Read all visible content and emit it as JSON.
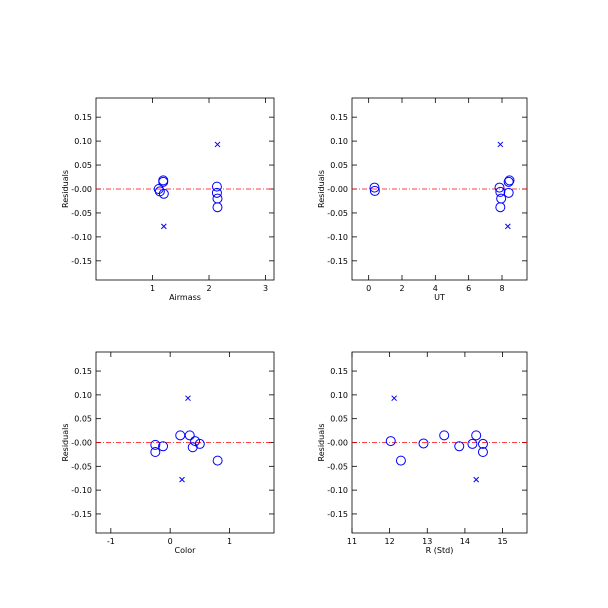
{
  "colors": {
    "points": "#0000ff",
    "zero_line": "#ff0000"
  },
  "chart_data": [
    {
      "type": "scatter",
      "xlabel": "Airmass",
      "ylabel": "Residuals",
      "xlim": [
        0,
        3.15
      ],
      "ylim": [
        -0.19,
        0.19
      ],
      "xticks": [
        1,
        2,
        3
      ],
      "yticks": [
        -0.15,
        -0.1,
        -0.05,
        0.0,
        0.05,
        0.1,
        0.15
      ],
      "ytick_labels": [
        "-0.15",
        "-0.10",
        "-0.05",
        "-0.00",
        "0.05",
        "0.10",
        "0.15"
      ],
      "reference_line": 0,
      "series": [
        {
          "marker": "circle",
          "points": [
            [
              1.11,
              0.0
            ],
            [
              1.13,
              -0.005
            ],
            [
              1.19,
              0.015
            ],
            [
              1.19,
              0.018
            ],
            [
              1.2,
              -0.01
            ],
            [
              2.14,
              0.005
            ],
            [
              2.14,
              -0.008
            ],
            [
              2.15,
              -0.02
            ],
            [
              2.15,
              -0.038
            ]
          ]
        },
        {
          "marker": "x",
          "points": [
            [
              2.15,
              0.093
            ],
            [
              1.2,
              -0.078
            ]
          ]
        }
      ]
    },
    {
      "type": "scatter",
      "xlabel": "UT",
      "ylabel": "Residuals",
      "xlim": [
        -1,
        9.5
      ],
      "ylim": [
        -0.19,
        0.19
      ],
      "xticks": [
        0,
        2,
        4,
        6,
        8
      ],
      "yticks": [
        -0.15,
        -0.1,
        -0.05,
        0.0,
        0.05,
        0.1,
        0.15
      ],
      "ytick_labels": [
        "-0.15",
        "-0.10",
        "-0.05",
        "-0.00",
        "0.05",
        "0.10",
        "0.15"
      ],
      "reference_line": 0,
      "series": [
        {
          "marker": "circle",
          "points": [
            [
              0.35,
              0.003
            ],
            [
              0.37,
              -0.004
            ],
            [
              7.85,
              0.003
            ],
            [
              7.9,
              -0.006
            ],
            [
              7.95,
              -0.02
            ],
            [
              7.9,
              -0.038
            ],
            [
              8.4,
              0.015
            ],
            [
              8.45,
              0.018
            ],
            [
              8.4,
              -0.008
            ]
          ]
        },
        {
          "marker": "x",
          "points": [
            [
              7.9,
              0.093
            ],
            [
              8.35,
              -0.078
            ]
          ]
        }
      ]
    },
    {
      "type": "scatter",
      "xlabel": "Color",
      "ylabel": "Residuals",
      "xlim": [
        -1.25,
        1.75
      ],
      "ylim": [
        -0.19,
        0.19
      ],
      "xticks": [
        -1,
        0,
        1
      ],
      "yticks": [
        -0.15,
        -0.1,
        -0.05,
        0.0,
        0.05,
        0.1,
        0.15
      ],
      "ytick_labels": [
        "-0.15",
        "-0.10",
        "-0.05",
        "-0.00",
        "0.05",
        "0.10",
        "0.15"
      ],
      "reference_line": 0,
      "series": [
        {
          "marker": "circle",
          "points": [
            [
              -0.25,
              -0.005
            ],
            [
              -0.25,
              -0.02
            ],
            [
              -0.12,
              -0.008
            ],
            [
              0.17,
              0.015
            ],
            [
              0.33,
              0.015
            ],
            [
              0.38,
              -0.01
            ],
            [
              0.42,
              0.003
            ],
            [
              0.5,
              -0.003
            ],
            [
              0.8,
              -0.038
            ]
          ]
        },
        {
          "marker": "x",
          "points": [
            [
              0.3,
              0.093
            ],
            [
              0.2,
              -0.078
            ]
          ]
        }
      ]
    },
    {
      "type": "scatter",
      "xlabel": "R (Std)",
      "ylabel": "Residuals",
      "xlim": [
        11,
        15.65
      ],
      "ylim": [
        -0.19,
        0.19
      ],
      "xticks": [
        11,
        12,
        13,
        14,
        15
      ],
      "yticks": [
        -0.15,
        -0.1,
        -0.05,
        0.0,
        0.05,
        0.1,
        0.15
      ],
      "ytick_labels": [
        "-0.15",
        "-0.10",
        "-0.05",
        "-0.00",
        "0.05",
        "0.10",
        "0.15"
      ],
      "reference_line": 0,
      "series": [
        {
          "marker": "circle",
          "points": [
            [
              12.03,
              0.003
            ],
            [
              12.3,
              -0.038
            ],
            [
              12.9,
              -0.002
            ],
            [
              13.45,
              0.015
            ],
            [
              13.85,
              -0.008
            ],
            [
              14.2,
              -0.003
            ],
            [
              14.3,
              0.015
            ],
            [
              14.48,
              -0.003
            ],
            [
              14.48,
              -0.02
            ]
          ]
        },
        {
          "marker": "x",
          "points": [
            [
              12.12,
              0.093
            ],
            [
              14.3,
              -0.078
            ]
          ]
        }
      ]
    }
  ]
}
